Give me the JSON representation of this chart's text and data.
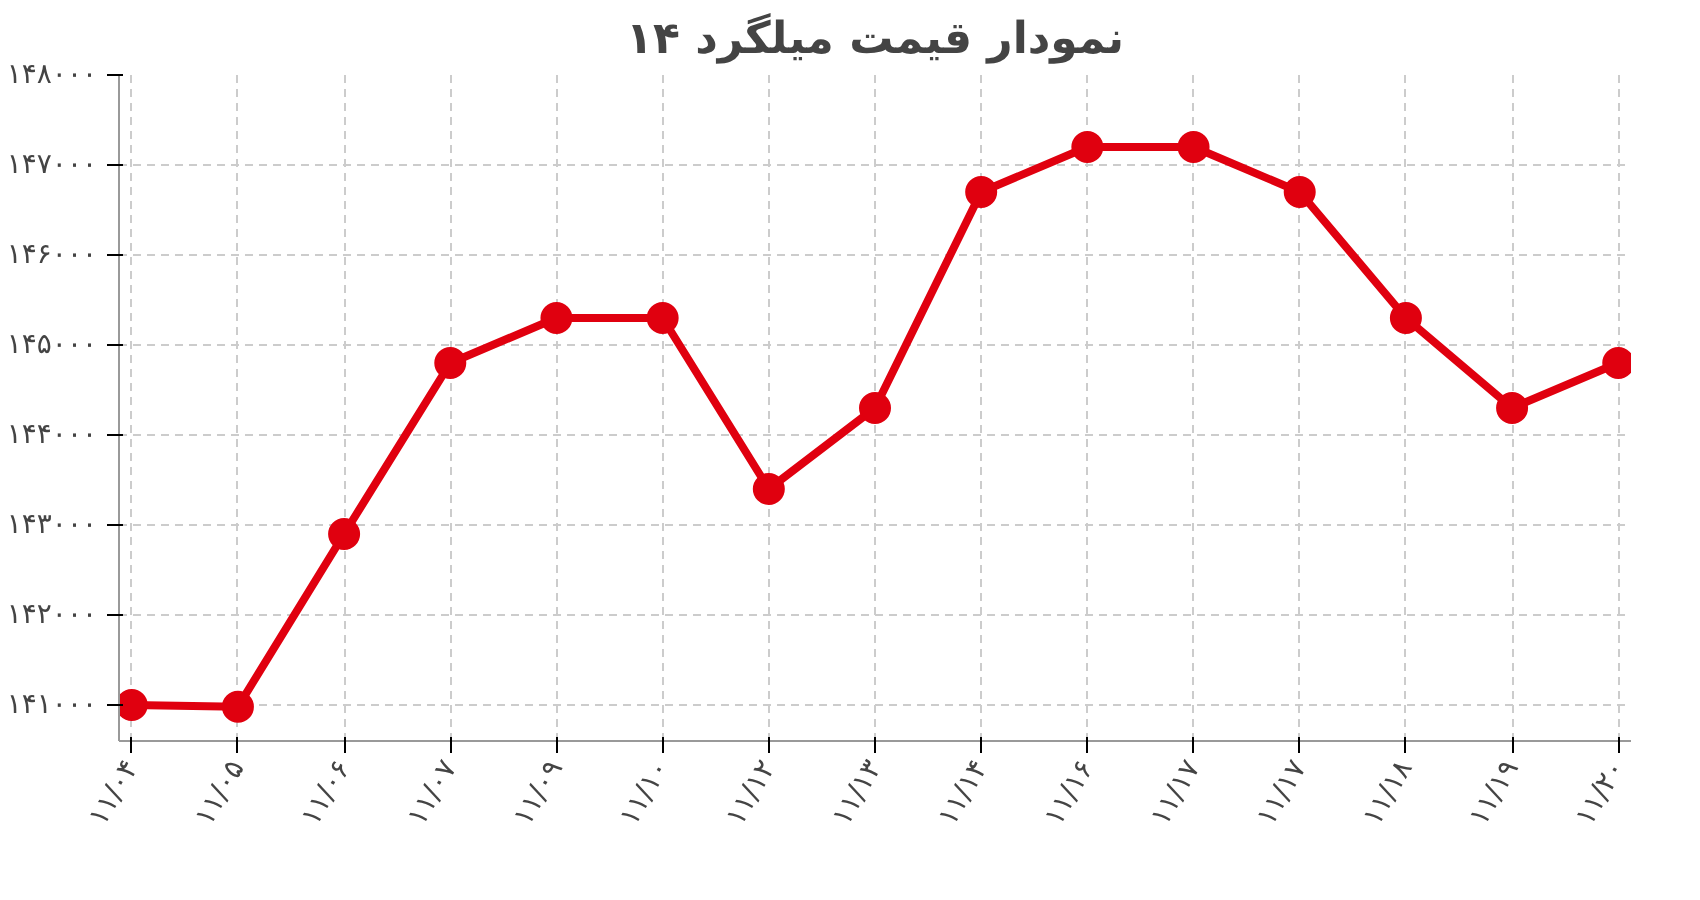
{
  "chart_data": {
    "type": "line",
    "title": "نمودار قیمت میلگرد ۱۴",
    "categories": [
      "۱۱/۰۴",
      "۱۱/۰۵",
      "۱۱/۰۶",
      "۱۱/۰۷",
      "۱۱/۰۹",
      "۱۱/۱۰",
      "۱۱/۱۲",
      "۱۱/۱۳",
      "۱۱/۱۴",
      "۱۱/۱۶",
      "۱۱/۱۷",
      "۱۱/۱۷",
      "۱۱/۱۸",
      "۱۱/۱۹",
      "۱۱/۲۰"
    ],
    "series": [
      {
        "color": "#e0000f",
        "values": [
          141000,
          140980,
          142900,
          144800,
          145300,
          145300,
          143400,
          144300,
          146700,
          147200,
          147200,
          146700,
          145300,
          144300,
          144800
        ]
      }
    ],
    "ylim": [
      140600,
      148000
    ],
    "yticks": [
      {
        "value": 141000,
        "label": "۱۴۱۰۰۰"
      },
      {
        "value": 142000,
        "label": "۱۴۲۰۰۰"
      },
      {
        "value": 143000,
        "label": "۱۴۳۰۰۰"
      },
      {
        "value": 144000,
        "label": "۱۴۴۰۰۰"
      },
      {
        "value": 145000,
        "label": "۱۴۵۰۰۰"
      },
      {
        "value": 146000,
        "label": "۱۴۶۰۰۰"
      },
      {
        "value": 147000,
        "label": "۱۴۷۰۰۰"
      },
      {
        "value": 148000,
        "label": "۱۴۸۰۰۰"
      }
    ],
    "grid": true,
    "marker": "circle",
    "line_style": "solid"
  }
}
